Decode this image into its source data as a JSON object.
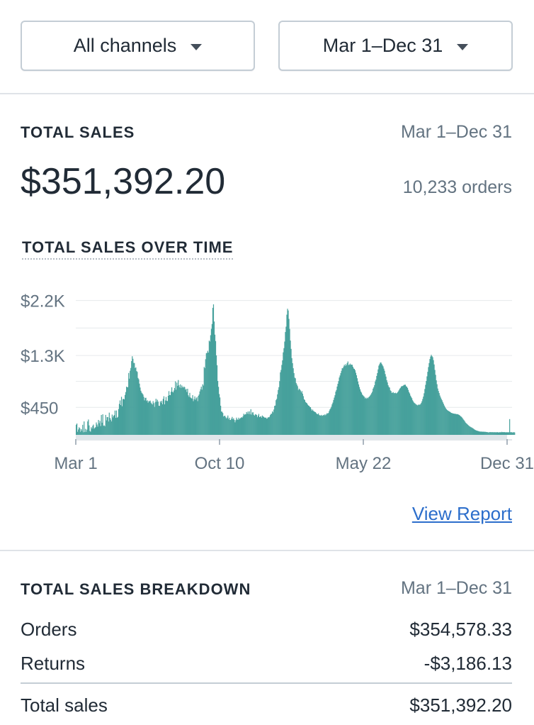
{
  "filters": {
    "channel_label": "All channels",
    "date_label": "Mar 1–Dec 31"
  },
  "total_sales": {
    "title": "TOTAL SALES",
    "date_range": "Mar 1–Dec 31",
    "amount": "$351,392.20",
    "orders": "10,233 orders"
  },
  "chart_section": {
    "title": "TOTAL SALES OVER TIME",
    "link_label": "View Report"
  },
  "breakdown": {
    "title": "TOTAL SALES BREAKDOWN",
    "date_range": "Mar 1–Dec 31",
    "rows": [
      {
        "label": "Orders",
        "value": "$354,578.33"
      },
      {
        "label": "Returns",
        "value": "-$3,186.13"
      },
      {
        "label": "Total sales",
        "value": "$351,392.20"
      }
    ]
  },
  "colors": {
    "bar": "#47a19c",
    "link": "#2c6ecb"
  },
  "chart_data": {
    "type": "bar",
    "title": "TOTAL SALES OVER TIME",
    "xlabel": "",
    "ylabel": "",
    "y_ticks": [
      {
        "value": 450,
        "label": "$450"
      },
      {
        "value": 1300,
        "label": "$1.3K"
      },
      {
        "value": 2200,
        "label": "$2.2K"
      }
    ],
    "x_ticks": [
      {
        "index": 0,
        "label": "Mar 1"
      },
      {
        "index": 200,
        "label": "Oct 10"
      },
      {
        "index": 400,
        "label": "May 22"
      },
      {
        "index": 600,
        "label": "Dec 31"
      }
    ],
    "ylim": [
      0,
      2300
    ],
    "n_days": 601,
    "grid": true,
    "series": [
      {
        "values": [
          166,
          185,
          51,
          88,
          124,
          109,
          51,
          94,
          67,
          165,
          43,
          220,
          46,
          98,
          50,
          85,
          220,
          251,
          155,
          64,
          51,
          125,
          102,
          148,
          168,
          99,
          115,
          127,
          203,
          169,
          135,
          244,
          191,
          227,
          144,
          326,
          199,
          337,
          148,
          155,
          140,
          327,
          237,
          291,
          290,
          219,
          364,
          278,
          249,
          220,
          332,
          285,
          312,
          323,
          398,
          278,
          399,
          280,
          294,
          423,
          506,
          564,
          488,
          623,
          468,
          585,
          590,
          580,
          654,
          701,
          790,
          778,
          782,
          1014,
          920,
          1050,
          1095,
          1208,
          1287,
          1246,
          1179,
          1176,
          1093,
          1105,
          1045,
          1031,
          932,
          911,
          839,
          775,
          722,
          692,
          678,
          660,
          623,
          565,
          605,
          608,
          554,
          566,
          526,
          552,
          550,
          561,
          528,
          510,
          496,
          552,
          519,
          458,
          537,
          591,
          542,
          575,
          545,
          477,
          474,
          550,
          527,
          558,
          501,
          589,
          632,
          500,
          563,
          621,
          559,
          553,
          640,
          716,
          651,
          651,
          706,
          778,
          705,
          695,
          727,
          767,
          876,
          739,
          856,
          803,
          898,
          811,
          778,
          827,
          769,
          809,
          785,
          772,
          791,
          780,
          739,
          752,
          701,
          755,
          648,
          622,
          688,
          613,
          602,
          592,
          650,
          552,
          585,
          630,
          574,
          599,
          617,
          552,
          639,
          661,
          712,
          747,
          788,
          740,
          828,
          807,
          1111,
          1092,
          1239,
          1337,
          1343,
          1376,
          1347,
          1542,
          1528,
          1632,
          1736,
          1815,
          2080,
          2137,
          1856,
          1641,
          1536,
          1301,
          1140,
          882,
          786,
          668,
          612,
          477,
          382,
          379,
          358,
          301,
          310,
          313,
          289,
          268,
          283,
          317,
          257,
          280,
          244,
          244,
          267,
          294,
          255,
          272,
          245,
          205,
          240,
          282,
          255,
          244,
          281,
          254,
          271,
          277,
          291,
          280,
          304,
          345,
          324,
          339,
          336,
          373,
          346,
          382,
          342,
          385,
          336,
          420,
          332,
          367,
          370,
          329,
          314,
          333,
          339,
          325,
          289,
          316,
          343,
          291,
          297,
          306,
          281,
          317,
          301,
          295,
          284,
          279,
          285,
          265,
          271,
          291,
          284,
          296,
          324,
          345,
          345,
          385,
          368,
          415,
          475,
          480,
          568,
          589,
          663,
          736,
          781,
          880,
          1024,
          1063,
          1145,
          1220,
          1351,
          1420,
          1528,
          1684,
          1772,
          1968,
          2065,
          2037,
          1899,
          1735,
          1544,
          1408,
          1257,
          1174,
          1091,
          1011,
          937,
          926,
          850,
          824,
          797,
          732,
          757,
          744,
          727,
          695,
          718,
          675,
          634,
          583,
          572,
          538,
          527,
          518,
          496,
          481,
          475,
          458,
          453,
          422,
          396,
          414,
          392,
          383,
          376,
          371,
          353,
          342,
          337,
          351,
          326,
          318,
          316,
          327,
          311,
          317,
          327,
          319,
          336,
          320,
          336,
          356,
          347,
          359,
          390,
          417,
          435,
          461,
          500,
          528,
          571,
          610,
          649,
          707,
          735,
          791,
          836,
          880,
          939,
          972,
          1011,
          1049,
          1091,
          1091,
          1118,
          1147,
          1127,
          1157,
          1137,
          1176,
          1202,
          1143,
          1148,
          1167,
          1147,
          1151,
          1147,
          1115,
          1087,
          1080,
          1059,
          1017,
          976,
          927,
          873,
          826,
          783,
          745,
          710,
          691,
          660,
          647,
          633,
          623,
          596,
          609,
          591,
          609,
          598,
          619,
          628,
          644,
          661,
          683,
          707,
          757,
          781,
          814,
          874,
          905,
          964,
          1011,
          1072,
          1133,
          1157,
          1183,
          1186,
          1163,
          1141,
          1121,
          1085,
          1050,
          995,
          954,
          895,
          859,
          812,
          785,
          774,
          729,
          717,
          686,
          691,
          700,
          682,
          684,
          690,
          678,
          683,
          695,
          712,
          731,
          755,
          768,
          788,
          799,
          798,
          807,
          818,
          820,
          821,
          795,
          788,
          768,
          736,
          700,
          678,
          643,
          621,
          600,
          567,
          547,
          527,
          518,
          508,
          496,
          492,
          482,
          493,
          496,
          493,
          503,
          521,
          550,
          587,
          627,
          681,
          751,
          819,
          882,
          958,
          1032,
          1110,
          1176,
          1242,
          1283,
          1311,
          1289,
          1272,
          1224,
          1153,
          1063,
          983,
          893,
          829,
          759,
          718,
          684,
          644,
          613,
          587,
          565,
          535,
          509,
          481,
          459,
          437,
          421,
          408,
          397,
          391,
          383,
          377,
          367,
          359,
          356,
          351,
          349,
          346,
          345,
          343,
          339,
          340,
          336,
          331,
          324,
          315,
          302,
          295,
          281,
          263,
          248,
          233,
          214,
          197,
          185,
          176,
          163,
          152,
          142,
          135,
          126,
          122,
          113,
          108,
          97,
          89,
          80,
          76,
          69,
          67,
          63,
          59,
          56,
          53,
          54,
          53,
          51,
          52,
          51,
          50,
          50,
          48,
          46,
          45,
          42,
          38,
          46,
          44,
          45,
          43,
          45,
          42,
          44,
          43,
          43,
          42,
          43,
          44,
          41,
          40,
          43,
          44,
          40,
          49,
          43,
          45,
          43,
          45,
          41,
          43,
          42,
          42,
          42,
          42,
          258,
          44,
          42,
          44,
          38,
          40,
          45,
          39
        ]
      }
    ]
  }
}
